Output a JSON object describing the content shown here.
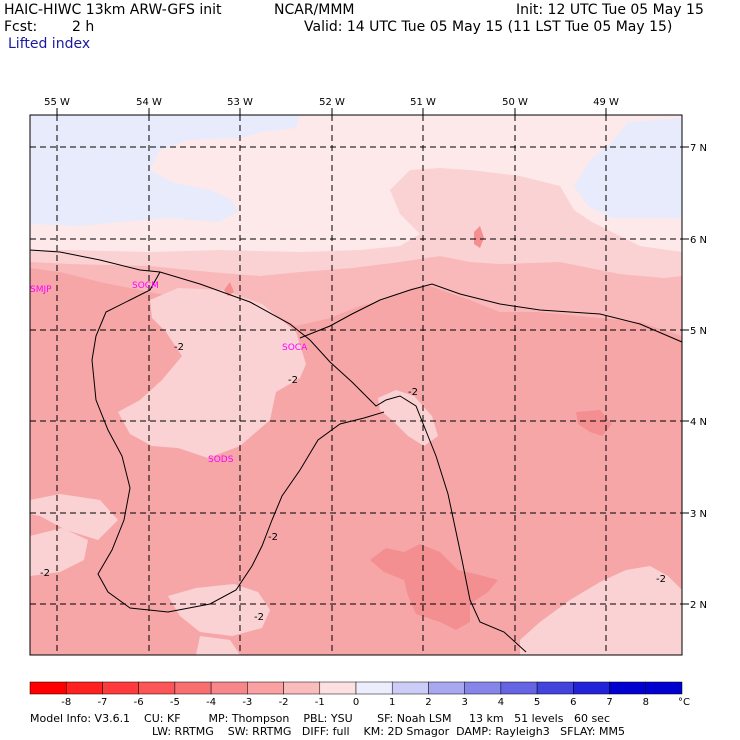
{
  "header": {
    "model": "HAIC-HIWC 13km ARW-GFS init",
    "org": "NCAR/MMM",
    "init": "Init: 12 UTC Tue 05 May 15",
    "fcst_label": "Fcst:",
    "fcst_value": "2 h",
    "valid": "Valid: 14 UTC Tue 05 May 15 (11 LST Tue 05 May 15)",
    "field": "Lifted index"
  },
  "map": {
    "lon_labels": [
      "55 W",
      "54 W",
      "53 W",
      "52 W",
      "51 W",
      "50 W",
      "49 W"
    ],
    "lat_labels": [
      "7 N",
      "6 N",
      "5 N",
      "4 N",
      "3 N",
      "2 N"
    ],
    "stations": [
      "SMJP",
      "SOCM",
      "SOCA",
      "SODS"
    ],
    "contour_label": "-2",
    "colors": {
      "very_light_blue": "#e8ebfb",
      "very_light_pink": "#fde9ea",
      "light_pink": "#fbd2d3",
      "medium_pink": "#f9b9bb",
      "pink": "#f7a6a8",
      "deep_pink": "#f38e91",
      "station_magenta": "#ff00ff"
    }
  },
  "colorbar": {
    "ticks": [
      "-8",
      "-7",
      "-6",
      "-5",
      "-4",
      "-3",
      "-2",
      "-1",
      "0",
      "1",
      "2",
      "3",
      "4",
      "5",
      "6",
      "7",
      "8"
    ],
    "unit": "°C",
    "colors": [
      "#ff0000",
      "#ff2020",
      "#fd3a3c",
      "#fb5558",
      "#f96e71",
      "#f7878a",
      "#f9a1a3",
      "#fbbcbe",
      "#fde0e1",
      "#ededfd",
      "#ccccf6",
      "#a8a8f0",
      "#8686ea",
      "#6565e4",
      "#4343de",
      "#2222d8",
      "#0000d0"
    ]
  },
  "footer": {
    "line1": "Model Info: V3.6.1    CU: KF        MP: Thompson    PBL: YSU       SF: Noah LSM     13 km   51 levels   60 sec",
    "line2": "LW: RRTMG    SW: RRTMG   DIFF: full    KM: 2D Smagor  DAMP: Rayleigh3   SFLAY: MM5"
  }
}
